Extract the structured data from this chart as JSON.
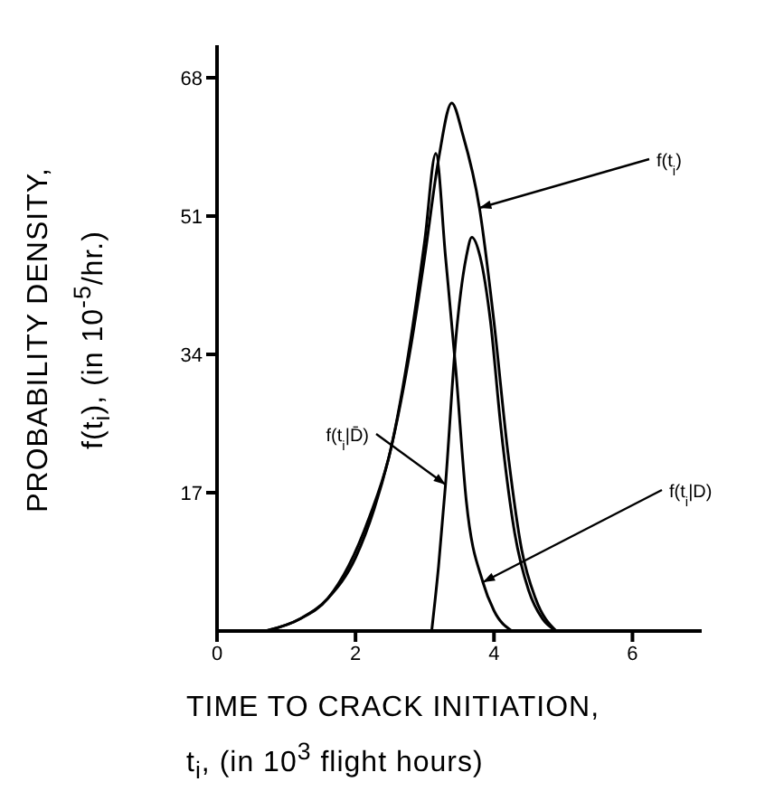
{
  "chart_data": {
    "type": "line",
    "xlabel": "TIME TO CRACK INITIATION,\nt$_{i}$, (in 10$^{3}$ flight hours)",
    "ylabel": "PROBABILITY  DENSITY,\nf(t$_{i}$),  (in 10$^{-5}$/hr.)",
    "xlim": [
      0,
      7
    ],
    "ylim": [
      0,
      72
    ],
    "xticks": [
      0,
      2,
      4,
      6
    ],
    "yticks": [
      17,
      34,
      51,
      68
    ],
    "grid": false,
    "legend": false,
    "marker": "none",
    "line_style": "solid",
    "series": [
      {
        "name": "f(t$_{i}$)",
        "color": "#000000",
        "x": [
          0.7,
          1.2,
          1.6,
          2.0,
          2.27,
          2.5,
          2.8,
          3.0,
          3.2,
          3.39,
          3.55,
          3.79,
          4.0,
          4.2,
          4.4,
          4.6,
          4.9
        ],
        "values": [
          0,
          1.5,
          4,
          9,
          15,
          22,
          35,
          46,
          58,
          64.9,
          61,
          52,
          38,
          22,
          10,
          4,
          0
        ]
      },
      {
        "name": "f(t$_{i}$|D̄)",
        "color": "#000000",
        "x": [
          3.1,
          3.2,
          3.3,
          3.45,
          3.6,
          3.68,
          3.8,
          3.95,
          4.1,
          4.3,
          4.5,
          4.7,
          4.9
        ],
        "values": [
          0,
          8,
          18,
          36,
          46,
          48.4,
          46,
          38,
          25,
          12,
          5,
          1.5,
          0
        ]
      },
      {
        "name": "f(t$_{i}$|D)",
        "color": "#000000",
        "x": [
          0.7,
          1.2,
          1.6,
          1.9,
          2.2,
          2.5,
          2.8,
          3.0,
          3.16,
          3.3,
          3.45,
          3.6,
          3.84,
          4.0,
          4.26
        ],
        "values": [
          0,
          1.5,
          4,
          8,
          14,
          22,
          36,
          48,
          58.7,
          46,
          32,
          16,
          6,
          2.5,
          0
        ]
      }
    ]
  }
}
